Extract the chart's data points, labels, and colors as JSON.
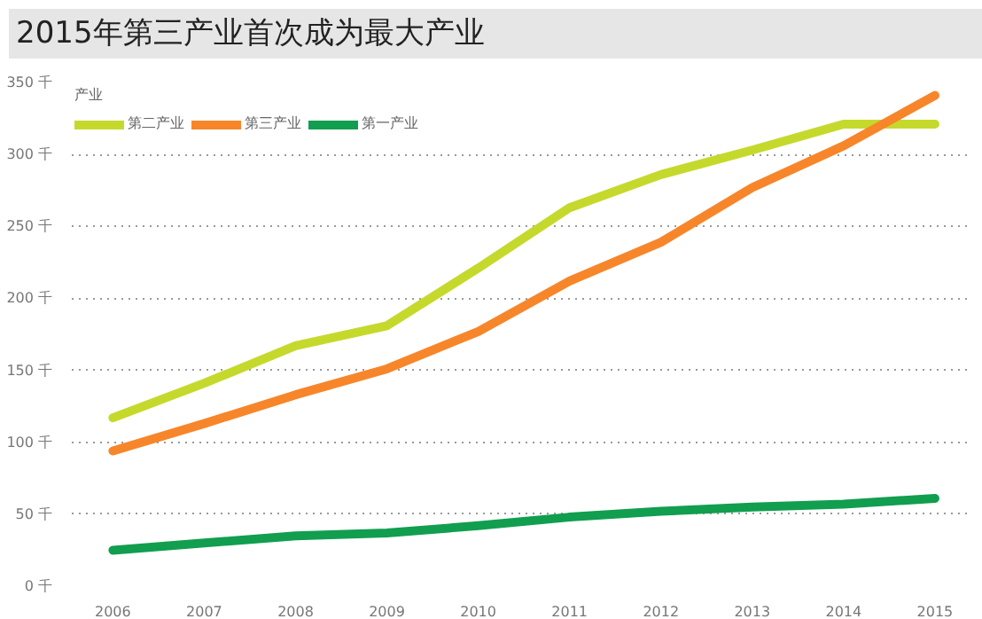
{
  "chart_data": {
    "type": "line",
    "title": "2015年第三产业首次成为最大产业",
    "legend_title": "产业",
    "categories": [
      "2006",
      "2007",
      "2008",
      "2009",
      "2010",
      "2011",
      "2012",
      "2013",
      "2014",
      "2015"
    ],
    "series": [
      {
        "name": "第二产业",
        "color": "#c5d92d",
        "values": [
          117,
          141,
          167,
          181,
          221,
          263,
          286,
          303,
          321,
          321
        ]
      },
      {
        "name": "第三产业",
        "color": "#f7862a",
        "values": [
          94,
          113,
          133,
          151,
          177,
          212,
          239,
          277,
          306,
          341
        ]
      },
      {
        "name": "第一产业",
        "color": "#119e4f",
        "values": [
          25,
          30,
          35,
          37,
          42,
          48,
          52,
          55,
          57,
          61
        ]
      }
    ],
    "ylim": [
      0,
      350
    ],
    "yticks": [
      {
        "value": 0,
        "label": "0 千"
      },
      {
        "value": 50,
        "label": "50 千"
      },
      {
        "value": 100,
        "label": "100 千"
      },
      {
        "value": 150,
        "label": "150 千"
      },
      {
        "value": 200,
        "label": "200 千"
      },
      {
        "value": 250,
        "label": "250 千"
      },
      {
        "value": 300,
        "label": "300 千"
      },
      {
        "value": 350,
        "label": "350 千"
      }
    ],
    "grid": "y",
    "legend": "top left",
    "line_style": "solid"
  }
}
